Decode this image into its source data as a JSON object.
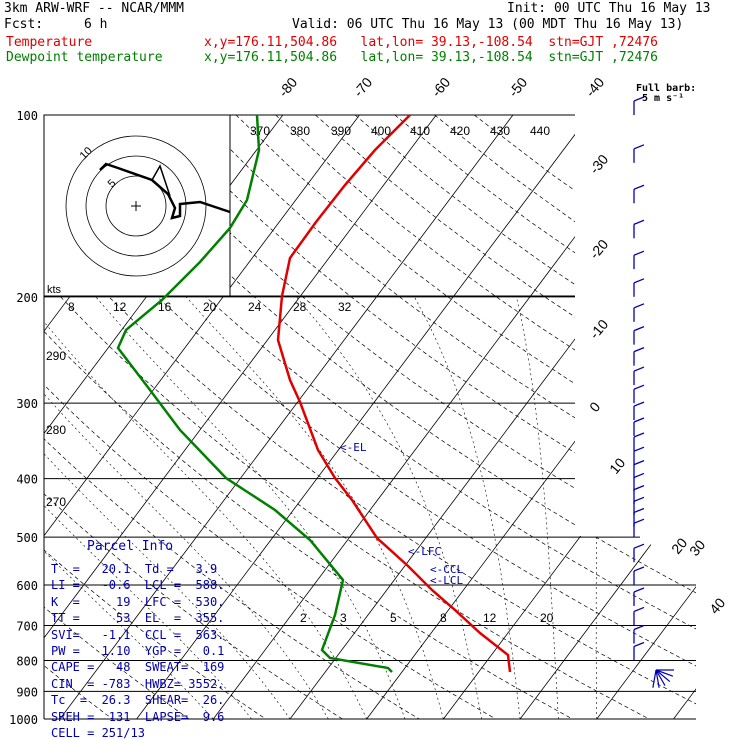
{
  "header": {
    "model": "3km ARW-WRF -- NCAR/MMM",
    "init": "Init: 00 UTC Thu 16 May 13",
    "fcst_label": "Fcst:",
    "fcst_value": "6 h",
    "valid": "Valid: 06 UTC Thu 16 May 13 (00 MDT Thu 16 May 13)",
    "temp_label": "Temperature",
    "temp_loc": "x,y=176.11,504.86   lat,lon= 39.13,-108.54  stn=GJT ,72476",
    "dew_label": "Dewpoint temperature",
    "dew_loc": "x,y=176.11,504.86   lat,lon= 39.13,-108.54  stn=GJT ,72476"
  },
  "full_barb": {
    "line1": "Full barb:",
    "line2": "5 m s⁻¹"
  },
  "parcel_info": {
    "title": "Parcel Info",
    "rows": [
      "T  =   20.1  Td =   3.9",
      "LI =   -0.6  LCL =  588.",
      "K  =     19  LFC =  530.",
      "TT =     53  EL  =  355.",
      "SVI=   -1.1  CCL =  563.",
      "PW =   1.10  YGP =   0.1",
      "CAPE =   48  SWEAT=  169",
      "CIN  = -783  HWBZ= 3552.",
      "Tc  =  26.3  SHEAR=  26.",
      "SREH =  131  LAPSE=  9.6",
      "CELL = 251/13"
    ]
  },
  "colors": {
    "temperature": "#e00000",
    "dewpoint": "#008000",
    "annotation": "#0000b0",
    "barbs": "#0000b0"
  },
  "chart_data": {
    "type": "line",
    "subtype": "skew-T log-p diagram",
    "pressure_levels": [
      100,
      200,
      300,
      400,
      500,
      600,
      700,
      800,
      900,
      1000
    ],
    "isotherm_labels": [
      -80,
      -70,
      -60,
      -50,
      -40,
      -30,
      -20,
      -10,
      0,
      10,
      20,
      30,
      40
    ],
    "theta_labels": [
      370,
      380,
      390,
      400,
      410,
      420,
      430,
      440,
      290,
      280,
      270
    ],
    "mixing_ratio_labels": [
      2,
      3,
      5,
      8,
      12,
      20
    ],
    "hodograph_speed_labels": [
      8,
      12,
      16,
      20,
      24,
      28,
      32
    ],
    "hodograph_ring_labels": [
      5,
      10
    ],
    "hodograph_units": "kts",
    "annotations": [
      "<-EL",
      "<-LFC",
      "<-CCL",
      "<-LCL"
    ],
    "series": [
      {
        "name": "Temperature",
        "points": [
          [
            100,
            -56
          ],
          [
            130,
            -57
          ],
          [
            160,
            -55
          ],
          [
            200,
            -51
          ],
          [
            250,
            -43
          ],
          [
            300,
            -34
          ],
          [
            350,
            -26
          ],
          [
            400,
            -19
          ],
          [
            450,
            -13
          ],
          [
            500,
            -8
          ],
          [
            550,
            -3
          ],
          [
            600,
            3
          ],
          [
            650,
            7
          ],
          [
            700,
            11
          ],
          [
            750,
            15
          ],
          [
            780,
            19
          ],
          [
            800,
            20
          ],
          [
            820,
            20.1
          ]
        ]
      },
      {
        "name": "Dewpoint temperature",
        "points": [
          [
            100,
            -80
          ],
          [
            150,
            -80
          ],
          [
            200,
            -85
          ],
          [
            250,
            -86
          ],
          [
            300,
            -80
          ],
          [
            350,
            -71
          ],
          [
            400,
            -60
          ],
          [
            450,
            -42
          ],
          [
            500,
            -30
          ],
          [
            550,
            -22
          ],
          [
            600,
            -14
          ],
          [
            700,
            -14
          ],
          [
            780,
            -15
          ],
          [
            800,
            -6
          ],
          [
            820,
            3.9
          ]
        ]
      }
    ],
    "wind_barbs": [
      [
        100,
        5
      ],
      [
        120,
        5
      ],
      [
        140,
        5
      ],
      [
        160,
        5
      ],
      [
        180,
        5
      ],
      [
        200,
        5
      ],
      [
        220,
        5
      ],
      [
        240,
        5
      ],
      [
        260,
        5
      ],
      [
        280,
        5
      ],
      [
        300,
        5
      ],
      [
        320,
        5
      ],
      [
        340,
        5
      ],
      [
        360,
        5
      ],
      [
        380,
        5
      ],
      [
        400,
        5
      ],
      [
        420,
        5
      ],
      [
        440,
        5
      ],
      [
        460,
        5
      ],
      [
        480,
        5
      ],
      [
        500,
        5
      ],
      [
        550,
        5
      ],
      [
        600,
        5
      ],
      [
        650,
        5
      ],
      [
        700,
        5
      ],
      [
        750,
        5
      ],
      [
        800,
        5
      ]
    ]
  }
}
